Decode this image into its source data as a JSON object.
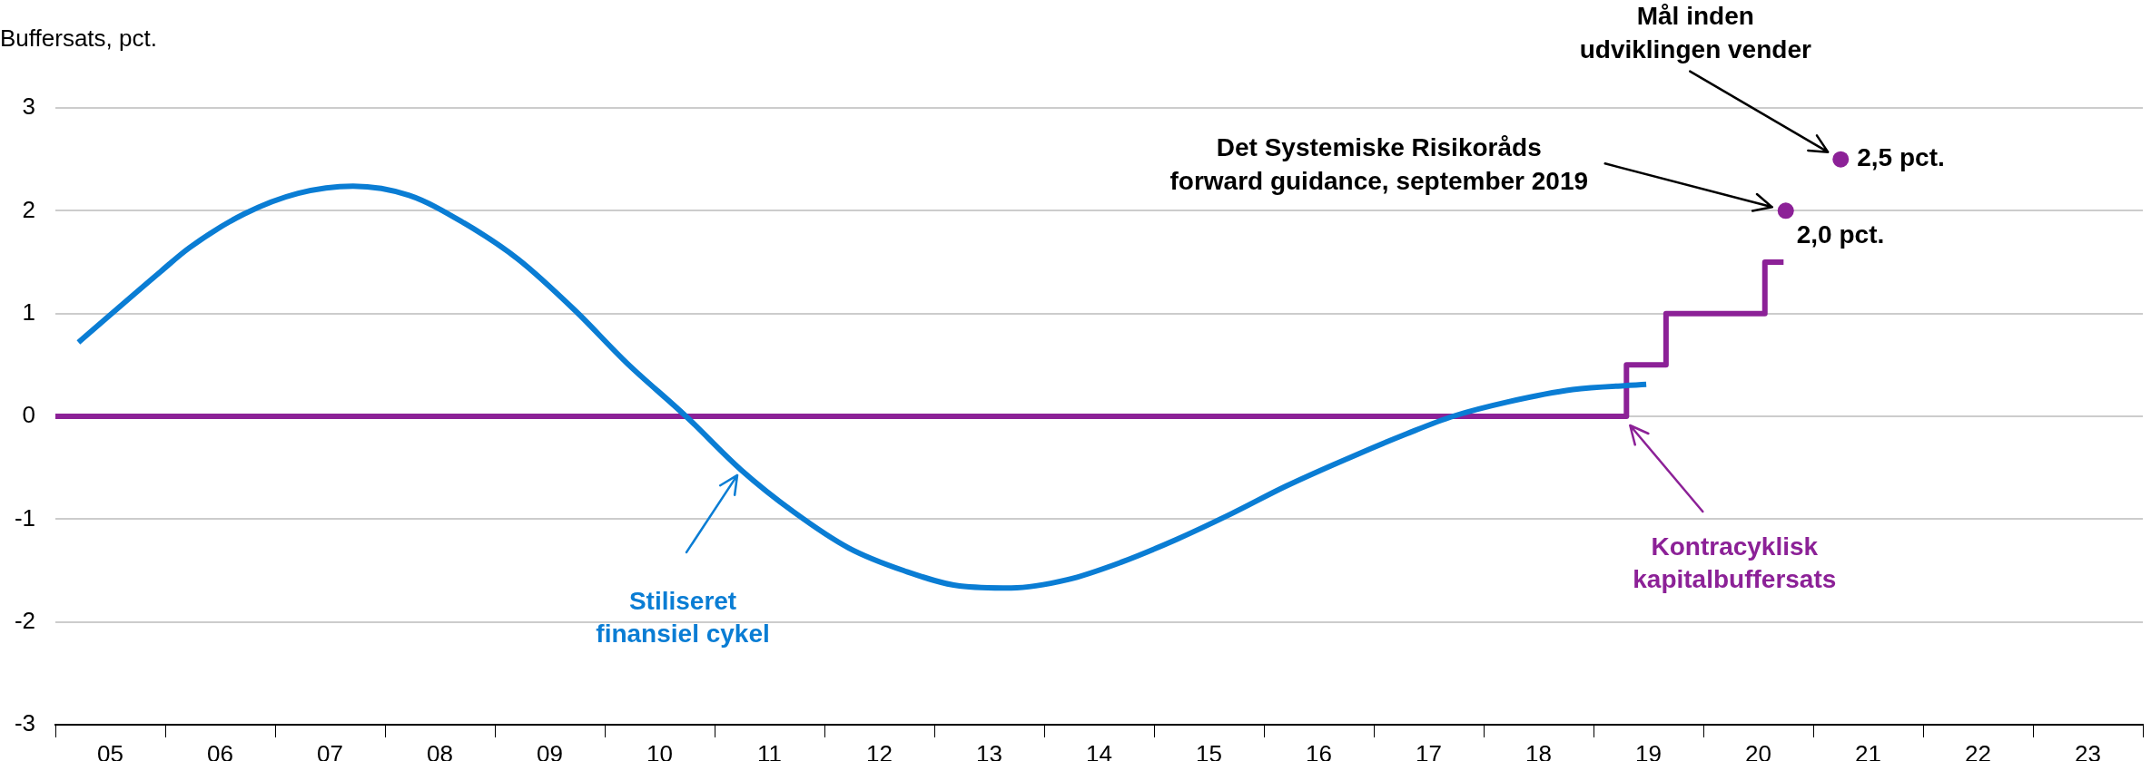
{
  "chart_data": {
    "type": "line",
    "ylabel": "Buffersats, pct.",
    "xlim": [
      4.5,
      23.5
    ],
    "xticks": [
      {
        "value": 4.5,
        "label": null
      },
      {
        "value": 5,
        "label": "05"
      },
      {
        "value": 5.5,
        "label": null
      },
      {
        "value": 6,
        "label": "06"
      },
      {
        "value": 6.5,
        "label": null
      },
      {
        "value": 7,
        "label": "07"
      },
      {
        "value": 7.5,
        "label": null
      },
      {
        "value": 8,
        "label": "08"
      },
      {
        "value": 8.5,
        "label": null
      },
      {
        "value": 9,
        "label": "09"
      },
      {
        "value": 9.5,
        "label": null
      },
      {
        "value": 10,
        "label": "10"
      },
      {
        "value": 10.5,
        "label": null
      },
      {
        "value": 11,
        "label": "11"
      },
      {
        "value": 11.5,
        "label": null
      },
      {
        "value": 12,
        "label": "12"
      },
      {
        "value": 12.5,
        "label": null
      },
      {
        "value": 13,
        "label": "13"
      },
      {
        "value": 13.5,
        "label": null
      },
      {
        "value": 14,
        "label": "14"
      },
      {
        "value": 14.5,
        "label": null
      },
      {
        "value": 15,
        "label": "15"
      },
      {
        "value": 15.5,
        "label": null
      },
      {
        "value": 16,
        "label": "16"
      },
      {
        "value": 16.5,
        "label": null
      },
      {
        "value": 17,
        "label": "17"
      },
      {
        "value": 17.5,
        "label": null
      },
      {
        "value": 18,
        "label": "18"
      },
      {
        "value": 18.5,
        "label": null
      },
      {
        "value": 19,
        "label": "19"
      },
      {
        "value": 19.5,
        "label": null
      },
      {
        "value": 20,
        "label": "20"
      },
      {
        "value": 20.5,
        "label": null
      },
      {
        "value": 21,
        "label": "21"
      },
      {
        "value": 21.5,
        "label": null
      },
      {
        "value": 22,
        "label": "22"
      },
      {
        "value": 22.5,
        "label": null
      },
      {
        "value": 23,
        "label": "23"
      },
      {
        "value": 23.5,
        "label": null
      }
    ],
    "ylim": [
      -3,
      3
    ],
    "yticks": [
      -3,
      -2,
      -1,
      0,
      1,
      2,
      3
    ],
    "grid": "y",
    "legend": false,
    "marker": "none",
    "annotations": [
      "Det Systemiske Risikoråds forward guidance, september 2019",
      "Mål inden udviklingen vender"
    ],
    "series": [
      {
        "name": "Stiliseret finansiel cykel",
        "type": "line",
        "color": "#0a7dd4",
        "x": [
          4.71,
          5.46,
          5.72,
          6.22,
          6.71,
          7.21,
          7.72,
          8.22,
          8.71,
          9.23,
          9.7,
          10.24,
          10.74,
          11.22,
          11.72,
          12.22,
          12.73,
          13.2,
          13.71,
          14.2,
          14.7,
          15.2,
          15.7,
          16.35,
          16.8,
          17.22,
          17.72,
          18.31,
          18.98
        ],
        "values": [
          0.72,
          1.41,
          1.64,
          1.97,
          2.17,
          2.24,
          2.15,
          1.88,
          1.53,
          1.03,
          0.52,
          0,
          -0.52,
          -0.93,
          -1.28,
          -1.5,
          -1.65,
          -1.67,
          -1.59,
          -1.42,
          -1.2,
          -0.95,
          -0.68,
          -0.37,
          -0.17,
          0,
          0.14,
          0.26,
          0.31
        ]
      },
      {
        "name": "Kontracyklisk kapitalbuffersats",
        "type": "step",
        "color": "#8c2197",
        "x": [
          4.5,
          18.8,
          19.16,
          20.06,
          20.23
        ],
        "values": [
          0,
          0.5,
          1.0,
          1.5,
          1.5
        ]
      },
      {
        "type": "scatter",
        "color": "#8c2197",
        "marker": "circle",
        "x": [
          20.25,
          20.75
        ],
        "values": [
          2.0,
          2.5
        ],
        "value_labels": [
          "2,0 pct.",
          "2,5 pct."
        ]
      }
    ]
  }
}
